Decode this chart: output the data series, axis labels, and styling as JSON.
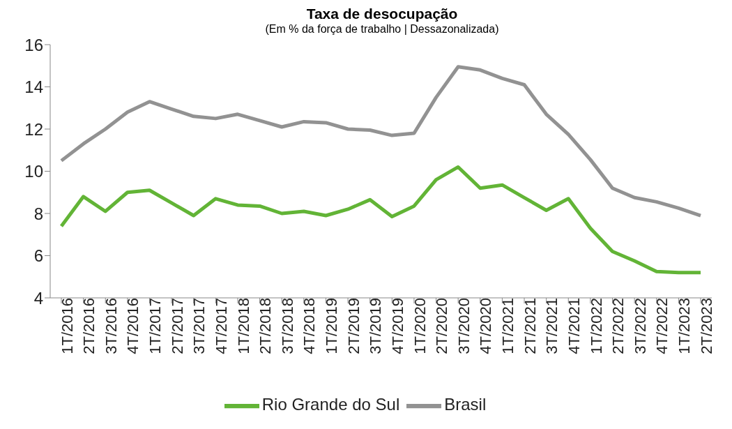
{
  "chart_data": {
    "type": "line",
    "title": "Taxa de desocupação",
    "subtitle": "(Em % da força de trabalho | Dessazonalizada)",
    "categories": [
      "1T/2016",
      "2T/2016",
      "3T/2016",
      "4T/2016",
      "1T/2017",
      "2T/2017",
      "3T/2017",
      "4T/2017",
      "1T/2018",
      "2T/2018",
      "3T/2018",
      "4T/2018",
      "1T/2019",
      "2T/2019",
      "3T/2019",
      "4T/2019",
      "1T/2020",
      "2T/2020",
      "3T/2020",
      "4T/2020",
      "1T/2021",
      "2T/2021",
      "3T/2021",
      "4T/2021",
      "1T/2022",
      "2T/2022",
      "3T/2022",
      "4T/2022",
      "1T/2023",
      "2T/2023"
    ],
    "series": [
      {
        "name": "Rio Grande do Sul",
        "color": "#62b436",
        "values": [
          7.4,
          8.8,
          8.1,
          9.0,
          9.1,
          8.5,
          7.9,
          8.7,
          8.4,
          8.35,
          8.0,
          8.1,
          7.9,
          8.2,
          8.65,
          7.85,
          8.35,
          9.6,
          10.2,
          9.2,
          9.35,
          8.75,
          8.15,
          8.7,
          7.3,
          6.2,
          5.75,
          5.25,
          5.2,
          5.2
        ]
      },
      {
        "name": "Brasil",
        "color": "#929292",
        "values": [
          10.5,
          11.3,
          12.0,
          12.8,
          13.3,
          12.95,
          12.6,
          12.5,
          12.7,
          12.4,
          12.1,
          12.35,
          12.3,
          12.0,
          11.95,
          11.7,
          11.8,
          13.5,
          14.95,
          14.8,
          14.4,
          14.1,
          12.7,
          11.75,
          10.55,
          9.2,
          8.75,
          8.55,
          8.25,
          7.9
        ]
      }
    ],
    "ylim": [
      4,
      16
    ],
    "yticks": [
      4,
      6,
      8,
      10,
      12,
      14,
      16
    ],
    "grid": false,
    "legend": "bottom",
    "marker": "none",
    "line_style": "solid"
  }
}
